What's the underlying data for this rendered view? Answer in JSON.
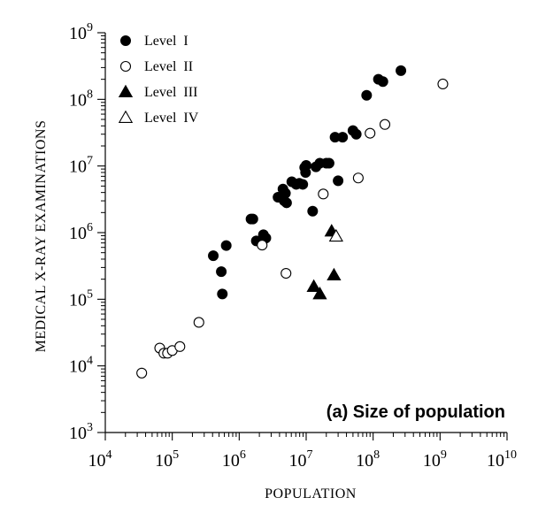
{
  "chart_data": {
    "type": "scatter",
    "title": "",
    "annotation": "(a) Size of population",
    "xlabel": "POPULATION",
    "ylabel": "MEDICAL X-RAY EXAMINATIONS",
    "xscale": "log",
    "yscale": "log",
    "xlim": [
      10000,
      10000000000
    ],
    "ylim": [
      1000,
      1000000000
    ],
    "x_ticks": [
      {
        "base": "10",
        "exp": "4",
        "value": 10000
      },
      {
        "base": "10",
        "exp": "5",
        "value": 100000
      },
      {
        "base": "10",
        "exp": "6",
        "value": 1000000
      },
      {
        "base": "10",
        "exp": "7",
        "value": 10000000
      },
      {
        "base": "10",
        "exp": "8",
        "value": 100000000
      },
      {
        "base": "10",
        "exp": "9",
        "value": 1000000000
      },
      {
        "base": "10",
        "exp": "10",
        "value": 10000000000
      }
    ],
    "y_ticks": [
      {
        "base": "10",
        "exp": "3",
        "value": 1000
      },
      {
        "base": "10",
        "exp": "4",
        "value": 10000
      },
      {
        "base": "10",
        "exp": "5",
        "value": 100000
      },
      {
        "base": "10",
        "exp": "6",
        "value": 1000000
      },
      {
        "base": "10",
        "exp": "7",
        "value": 10000000
      },
      {
        "base": "10",
        "exp": "8",
        "value": 100000000
      },
      {
        "base": "10",
        "exp": "9",
        "value": 1000000000
      }
    ],
    "legend_position": "top-left",
    "series": [
      {
        "name": "Level  I",
        "marker": "filled-circle",
        "points": [
          [
            410000,
            450000
          ],
          [
            540000,
            260000
          ],
          [
            560000,
            120000
          ],
          [
            640000,
            640000
          ],
          [
            1500000,
            1600000
          ],
          [
            1600000,
            1600000
          ],
          [
            1800000,
            750000
          ],
          [
            2300000,
            930000
          ],
          [
            2500000,
            830000
          ],
          [
            3800000,
            3400000
          ],
          [
            4500000,
            4500000
          ],
          [
            4700000,
            3000000
          ],
          [
            4900000,
            3900000
          ],
          [
            5100000,
            2800000
          ],
          [
            6100000,
            5800000
          ],
          [
            7100000,
            5300000
          ],
          [
            7900000,
            5500000
          ],
          [
            8900000,
            5300000
          ],
          [
            9500000,
            9500000
          ],
          [
            9800000,
            8000000
          ],
          [
            10000000,
            10200000
          ],
          [
            12500000,
            2100000
          ],
          [
            14000000,
            9700000
          ],
          [
            16000000,
            11000000
          ],
          [
            20000000,
            11000000
          ],
          [
            22000000,
            11000000
          ],
          [
            27000000,
            27000000
          ],
          [
            30000000,
            6000000
          ],
          [
            35000000,
            27000000
          ],
          [
            50000000,
            34000000
          ],
          [
            56000000,
            30000000
          ],
          [
            80000000,
            115000000
          ],
          [
            120000000,
            200000000
          ],
          [
            140000000,
            185000000
          ],
          [
            260000000,
            270000000
          ]
        ]
      },
      {
        "name": "Level  II",
        "marker": "open-circle",
        "points": [
          [
            35000,
            7800
          ],
          [
            65000,
            18500
          ],
          [
            75000,
            15500
          ],
          [
            85000,
            15500
          ],
          [
            100000,
            17000
          ],
          [
            130000,
            19500
          ],
          [
            250000,
            45000
          ],
          [
            2200000,
            650000
          ],
          [
            5000000,
            245000
          ],
          [
            18000000,
            3800000
          ],
          [
            60000000,
            6600000
          ],
          [
            90000000,
            31000000
          ],
          [
            150000000,
            42000000
          ],
          [
            1100000000,
            170000000
          ]
        ]
      },
      {
        "name": "Level  III",
        "marker": "filled-triangle",
        "points": [
          [
            13000000,
            155000
          ],
          [
            16000000,
            120000
          ],
          [
            24000000,
            1050000
          ],
          [
            26000000,
            230000
          ]
        ]
      },
      {
        "name": "Level  IV",
        "marker": "open-triangle",
        "points": [
          [
            28000000,
            880000
          ]
        ]
      }
    ]
  }
}
